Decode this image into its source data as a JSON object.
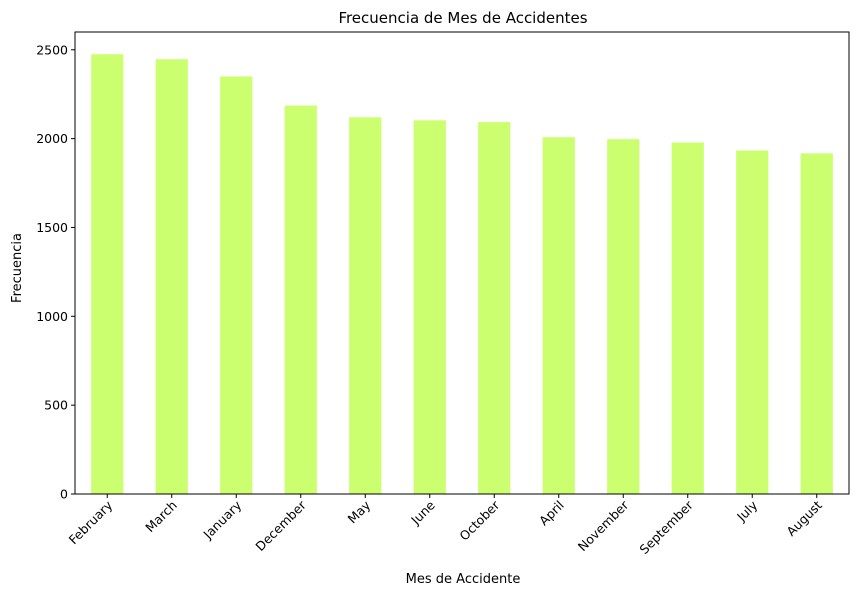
{
  "chart_data": {
    "type": "bar",
    "title": "Frecuencia de Mes de Accidentes",
    "xlabel": "Mes de Accidente",
    "ylabel": "Frecuencia",
    "categories": [
      "February",
      "March",
      "January",
      "December",
      "May",
      "June",
      "October",
      "April",
      "November",
      "September",
      "July",
      "August"
    ],
    "values": [
      2475,
      2447,
      2350,
      2186,
      2120,
      2103,
      2093,
      2008,
      1997,
      1978,
      1933,
      1917
    ],
    "ylim": [
      0,
      2600
    ],
    "yticks": [
      0,
      500,
      1000,
      1500,
      2000,
      2500
    ],
    "ytick_labels": [
      "0",
      "500",
      "1000",
      "1500",
      "2000",
      "2500"
    ],
    "bar_color": "#ccff70",
    "grid": false,
    "legend": "none"
  }
}
